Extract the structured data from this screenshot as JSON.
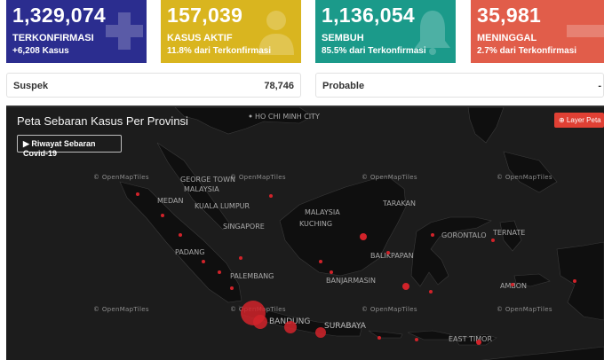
{
  "cards": {
    "confirmed": {
      "value": "1,329,074",
      "label": "TERKONFIRMASI",
      "sub": "+6,208 Kasus",
      "color": "#2b2d8f",
      "icon": "plus-cross-icon"
    },
    "active": {
      "value": "157,039",
      "label": "KASUS AKTIF",
      "sub": "11.8% dari Terkonfirmasi",
      "color": "#d9b51f",
      "icon": "doctor-icon"
    },
    "recovered": {
      "value": "1,136,054",
      "label": "SEMBUH",
      "sub": "85.5% dari Terkonfirmasi",
      "color": "#1b9a8a",
      "icon": "bell-icon"
    },
    "deaths": {
      "value": "35,981",
      "label": "MENINGGAL",
      "sub": "2.7% dari Terkonfirmasi",
      "color": "#e15d4a",
      "icon": "minus-icon"
    }
  },
  "info": {
    "suspek_label": "Suspek",
    "suspek_value": "78,746",
    "probable_label": "Probable",
    "probable_value": "-"
  },
  "map": {
    "title": "Peta Sebaran Kasus Per Provinsi",
    "history_button": "▶ Riwayat Sebaran Covid-19",
    "layer_button": "⊕ Layer Peta",
    "attribution": "© OpenMapTiles",
    "labels": {
      "ho_chi_minh": "HO CHI MINH CITY",
      "george_town": "GEORGE TOWN",
      "malaysia_west": "MALAYSIA",
      "medan": "MEDAN",
      "kuala_lumpur": "KUALA LUMPUR",
      "singapore": "SINGAPORE",
      "kuching": "KUCHING",
      "malaysia_east": "MALAYSIA",
      "tarakan": "TARAKAN",
      "sorontalo": "GORONTALO",
      "ternate": "TERNATE",
      "balikpapan": "BALIKPAPAN",
      "banjarmasin": "BANJARMASIN",
      "padang": "PADANG",
      "palembang": "PALEMBANG",
      "ambon": "AMBON",
      "bandung": "BANDUNG",
      "surabaya": "SURABAYA",
      "east_timor": "EAST TIMOR"
    }
  }
}
